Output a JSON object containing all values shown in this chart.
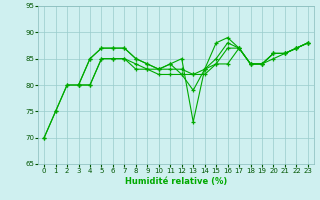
{
  "xlabel": "Humidité relative (%)",
  "background_color": "#cff0f0",
  "grid_color": "#99cccc",
  "line_color": "#00aa00",
  "xlim": [
    -0.5,
    23.5
  ],
  "ylim": [
    65,
    95
  ],
  "yticks": [
    65,
    70,
    75,
    80,
    85,
    90,
    95
  ],
  "xticks": [
    0,
    1,
    2,
    3,
    4,
    5,
    6,
    7,
    8,
    9,
    10,
    11,
    12,
    13,
    14,
    15,
    16,
    17,
    18,
    19,
    20,
    21,
    22,
    23
  ],
  "lines": [
    {
      "x": [
        0,
        1,
        2,
        3,
        4,
        5,
        6,
        7,
        8,
        9,
        10,
        11,
        12,
        13,
        14,
        15,
        16,
        17,
        18,
        19,
        20,
        21,
        22,
        23
      ],
      "y": [
        70,
        75,
        80,
        80,
        85,
        87,
        87,
        87,
        85,
        84,
        83,
        84,
        85,
        73,
        83,
        88,
        89,
        87,
        84,
        84,
        86,
        86,
        87,
        88
      ]
    },
    {
      "x": [
        0,
        1,
        2,
        3,
        4,
        5,
        6,
        7,
        8,
        9,
        10,
        11,
        12,
        13,
        14,
        15,
        16,
        17,
        18,
        19,
        20,
        21,
        22,
        23
      ],
      "y": [
        70,
        75,
        80,
        80,
        85,
        87,
        87,
        87,
        85,
        84,
        83,
        84,
        82,
        79,
        83,
        85,
        88,
        87,
        84,
        84,
        86,
        86,
        87,
        88
      ]
    },
    {
      "x": [
        3,
        4,
        5,
        6,
        7,
        8,
        9,
        10,
        11,
        12,
        13,
        14,
        15,
        16,
        17,
        18,
        19,
        20,
        21,
        22,
        23
      ],
      "y": [
        80,
        80,
        85,
        85,
        85,
        83,
        83,
        82,
        82,
        82,
        82,
        83,
        84,
        87,
        87,
        84,
        84,
        86,
        86,
        87,
        88
      ]
    },
    {
      "x": [
        3,
        4,
        5,
        6,
        7,
        8,
        9,
        10,
        11,
        12,
        13,
        14,
        15,
        16,
        17,
        18,
        19,
        20,
        21,
        22,
        23
      ],
      "y": [
        80,
        80,
        85,
        85,
        85,
        84,
        83,
        83,
        83,
        83,
        82,
        82,
        84,
        84,
        87,
        84,
        84,
        85,
        86,
        87,
        88
      ]
    }
  ]
}
